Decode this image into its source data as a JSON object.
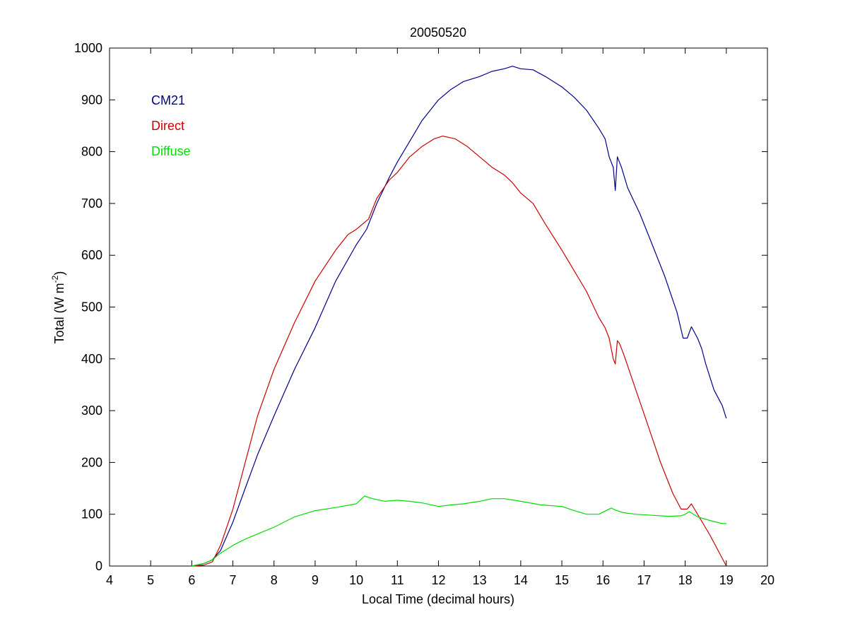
{
  "chart_data": {
    "type": "line",
    "title": "20050520",
    "xlabel": "Local Time (decimal hours)",
    "ylabel_main": "Total (W m",
    "ylabel_sup": "-2",
    "ylabel_end": ")",
    "xlim": [
      4,
      20
    ],
    "ylim": [
      0,
      1000
    ],
    "xticks": [
      4,
      5,
      6,
      7,
      8,
      9,
      10,
      11,
      12,
      13,
      14,
      15,
      16,
      17,
      18,
      19,
      20
    ],
    "yticks": [
      0,
      100,
      200,
      300,
      400,
      500,
      600,
      700,
      800,
      900,
      1000
    ],
    "grid": false,
    "legend_position": "top-left",
    "series": [
      {
        "name": "CM21",
        "color": "#00008b",
        "x": [
          6.0,
          6.3,
          6.5,
          6.7,
          7.0,
          7.3,
          7.6,
          8.0,
          8.5,
          9.0,
          9.5,
          10.0,
          10.25,
          10.5,
          10.8,
          11.0,
          11.3,
          11.6,
          12.0,
          12.3,
          12.6,
          13.0,
          13.3,
          13.6,
          13.8,
          14.0,
          14.3,
          14.6,
          15.0,
          15.3,
          15.6,
          15.9,
          16.05,
          16.15,
          16.2,
          16.25,
          16.3,
          16.35,
          16.45,
          16.6,
          16.9,
          17.2,
          17.5,
          17.8,
          17.95,
          18.05,
          18.15,
          18.3,
          18.4,
          18.5,
          18.7,
          18.9,
          19.0
        ],
        "y": [
          0,
          5,
          12,
          30,
          85,
          150,
          215,
          290,
          380,
          460,
          550,
          620,
          650,
          700,
          750,
          780,
          820,
          860,
          900,
          920,
          935,
          945,
          955,
          960,
          965,
          960,
          958,
          945,
          925,
          905,
          880,
          845,
          825,
          790,
          780,
          770,
          725,
          790,
          770,
          730,
          680,
          620,
          560,
          490,
          440,
          440,
          462,
          440,
          420,
          390,
          340,
          310,
          285
        ]
      },
      {
        "name": "Direct",
        "color": "#cc0000",
        "x": [
          6.0,
          6.3,
          6.5,
          6.7,
          7.0,
          7.3,
          7.6,
          8.0,
          8.5,
          9.0,
          9.5,
          9.8,
          10.0,
          10.3,
          10.5,
          10.8,
          11.0,
          11.3,
          11.6,
          11.9,
          12.1,
          12.4,
          12.7,
          13.0,
          13.3,
          13.6,
          13.8,
          14.0,
          14.3,
          14.6,
          15.0,
          15.3,
          15.6,
          15.9,
          16.05,
          16.15,
          16.2,
          16.25,
          16.3,
          16.35,
          16.4,
          16.5,
          16.8,
          17.1,
          17.4,
          17.7,
          17.9,
          18.05,
          18.15,
          18.3,
          18.6,
          18.8,
          19.0
        ],
        "y": [
          0,
          2,
          8,
          40,
          110,
          200,
          290,
          380,
          470,
          550,
          610,
          640,
          650,
          670,
          710,
          745,
          760,
          790,
          810,
          825,
          830,
          825,
          810,
          790,
          770,
          755,
          740,
          720,
          700,
          660,
          610,
          570,
          530,
          480,
          460,
          440,
          420,
          400,
          390,
          435,
          430,
          410,
          340,
          270,
          200,
          140,
          110,
          110,
          120,
          100,
          60,
          30,
          0
        ]
      },
      {
        "name": "Diffuse",
        "color": "#00dd00",
        "x": [
          6.0,
          6.3,
          6.5,
          6.7,
          7.0,
          7.3,
          7.6,
          8.0,
          8.5,
          9.0,
          9.5,
          10.0,
          10.2,
          10.4,
          10.7,
          11.0,
          11.3,
          11.6,
          12.0,
          12.3,
          12.6,
          13.0,
          13.3,
          13.6,
          14.0,
          14.5,
          15.0,
          15.3,
          15.6,
          15.9,
          16.1,
          16.2,
          16.3,
          16.5,
          16.8,
          17.2,
          17.6,
          17.9,
          18.0,
          18.1,
          18.3,
          18.6,
          18.9,
          19.0
        ],
        "y": [
          0,
          5,
          12,
          25,
          40,
          52,
          62,
          75,
          95,
          107,
          113,
          120,
          135,
          130,
          125,
          127,
          125,
          122,
          115,
          118,
          120,
          125,
          130,
          130,
          125,
          118,
          115,
          107,
          100,
          100,
          108,
          112,
          108,
          103,
          100,
          98,
          96,
          97,
          100,
          105,
          95,
          88,
          82,
          82
        ]
      }
    ]
  }
}
